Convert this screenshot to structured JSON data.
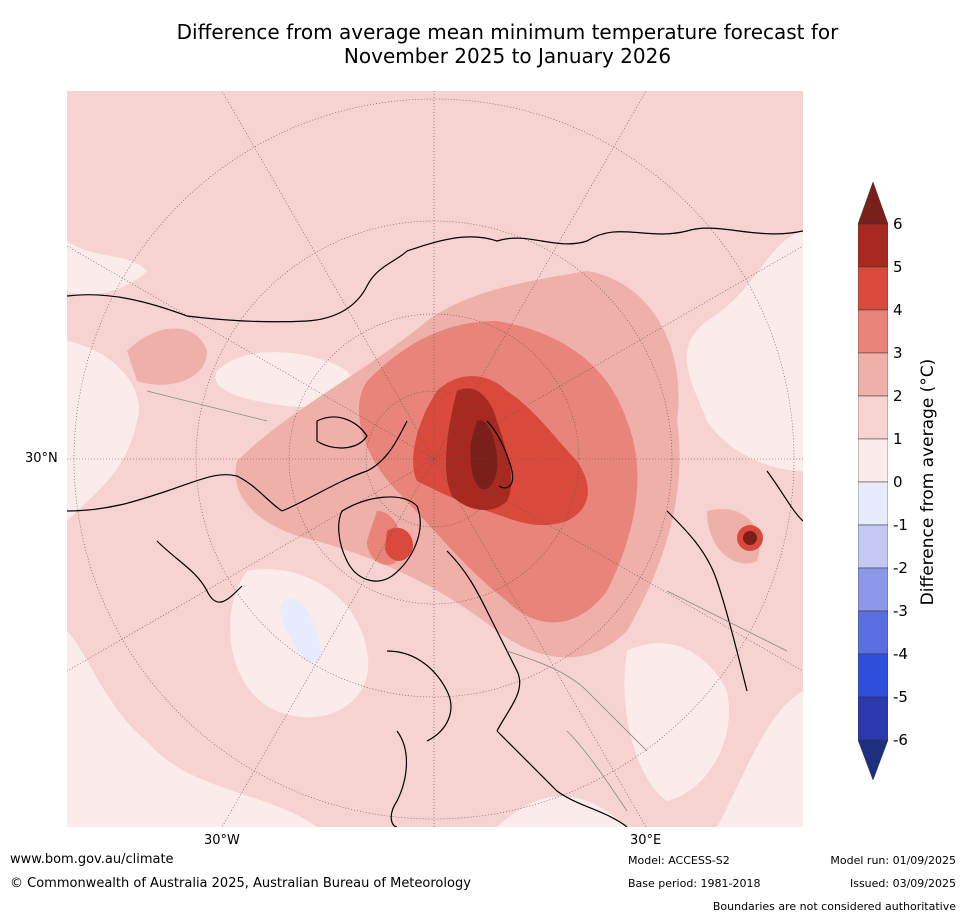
{
  "title": {
    "line1": "Difference from average mean minimum temperature forecast for",
    "line2": "November 2025 to January 2026"
  },
  "map_labels": {
    "lat_30n": "30°N",
    "lon_30w": "30°W",
    "lon_30e": "30°E"
  },
  "colorbar": {
    "label": "Difference from average ($^\\circ$C)",
    "label_display": "Difference from average (°C)",
    "ticks": [
      "6",
      "5",
      "4",
      "3",
      "2",
      "1",
      "0",
      "-1",
      "-2",
      "-3",
      "-4",
      "-5",
      "-6"
    ],
    "colors": {
      "over": "#7a1f1a",
      "5_6": "#a8291f",
      "4_5": "#d94a3c",
      "3_4": "#e88479",
      "2_3": "#efb0aa",
      "1_2": "#f6d3d0",
      "0_1": "#fbeceb",
      "m1_0": "#e8ebfb",
      "m2_m1": "#c3c9f2",
      "m3_m2": "#8c98ea",
      "m4_m3": "#5a6ee0",
      "m5_m4": "#2f4fdc",
      "m6_m5": "#2a3aac",
      "under": "#1f2f7f"
    }
  },
  "footer": {
    "url": "www.bom.gov.au/climate",
    "copyright": "© Commonwealth of Australia 2025, Australian Bureau of Meteorology",
    "model": "Model: ACCESS-S2",
    "base_period": "Base period: 1981-2018",
    "model_run": "Model run: 01/09/2025",
    "issued": "Issued: 03/09/2025",
    "disclaimer": "Boundaries are not considered authoritative"
  }
}
